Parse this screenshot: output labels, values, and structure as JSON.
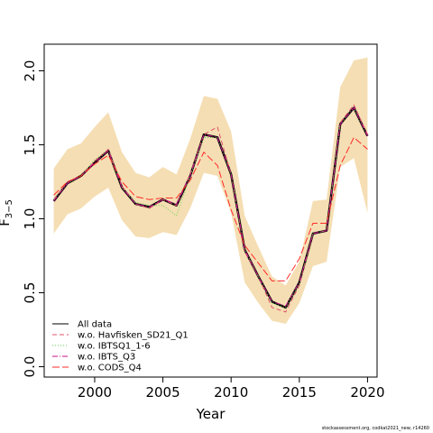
{
  "footer": "stockassessment.org, codkat2021_new, r14260",
  "chart_data": {
    "type": "line",
    "xlabel": "Year",
    "ylabel": "F",
    "ylabel_sub": "3−5",
    "xlim": [
      1996.3,
      2020.7
    ],
    "ylim": [
      -0.07,
      2.18
    ],
    "x_ticks": [
      "2000",
      "2005",
      "2010",
      "2015",
      "2020"
    ],
    "y_ticks": [
      "0.0",
      "0.5",
      "1.0",
      "1.5",
      "2.0"
    ],
    "x": [
      1997,
      1998,
      1999,
      2000,
      2001,
      2002,
      2003,
      2004,
      2005,
      2006,
      2007,
      2008,
      2009,
      2010,
      2011,
      2012,
      2013,
      2014,
      2015,
      2016,
      2017,
      2018,
      2019,
      2020
    ],
    "confidence_band": {
      "color": "#f5deb3",
      "upper": [
        1.34,
        1.47,
        1.51,
        1.62,
        1.72,
        1.45,
        1.31,
        1.28,
        1.35,
        1.3,
        1.54,
        1.83,
        1.81,
        1.59,
        1.02,
        0.81,
        0.61,
        0.55,
        0.71,
        1.12,
        1.13,
        1.89,
        2.07,
        2.09
      ],
      "lower": [
        0.9,
        1.03,
        1.07,
        1.15,
        1.21,
        0.99,
        0.88,
        0.87,
        0.91,
        0.89,
        1.07,
        1.31,
        1.29,
        1.04,
        0.57,
        0.43,
        0.31,
        0.29,
        0.43,
        0.68,
        0.71,
        1.35,
        1.41,
        1.04
      ]
    },
    "series": [
      {
        "name": "All data",
        "color": "#000000",
        "dash": "",
        "width": 2.4,
        "values": [
          1.12,
          1.24,
          1.29,
          1.38,
          1.46,
          1.21,
          1.1,
          1.08,
          1.13,
          1.09,
          1.29,
          1.57,
          1.55,
          1.3,
          0.79,
          0.61,
          0.44,
          0.4,
          0.57,
          0.9,
          0.92,
          1.64,
          1.75,
          1.56
        ]
      },
      {
        "name": "w.o. Havfisken_SD21_Q1",
        "color": "#df536b",
        "dash": "5,3",
        "width": 1,
        "values": [
          1.13,
          1.25,
          1.29,
          1.39,
          1.47,
          1.22,
          1.1,
          1.07,
          1.13,
          1.09,
          1.3,
          1.57,
          1.62,
          1.3,
          0.78,
          0.61,
          0.4,
          0.37,
          0.55,
          0.9,
          0.92,
          1.65,
          1.77,
          1.57
        ]
      },
      {
        "name": "w.o. IBTSQ1_1-6",
        "color": "#61d04f",
        "dash": "1,2",
        "width": 1,
        "values": [
          1.13,
          1.24,
          1.29,
          1.4,
          1.46,
          1.21,
          1.11,
          1.09,
          1.09,
          1.02,
          1.29,
          1.55,
          1.55,
          1.3,
          0.79,
          0.61,
          0.43,
          0.4,
          0.56,
          0.9,
          0.92,
          1.64,
          1.75,
          1.56
        ]
      },
      {
        "name": "w.o. IBTS_Q3",
        "color": "#c8108c",
        "dash": "6,2,1,2",
        "width": 1,
        "values": [
          1.12,
          1.24,
          1.29,
          1.38,
          1.46,
          1.21,
          1.1,
          1.08,
          1.13,
          1.1,
          1.29,
          1.57,
          1.55,
          1.3,
          0.79,
          0.61,
          0.44,
          0.41,
          0.57,
          0.9,
          0.92,
          1.64,
          1.75,
          1.56
        ]
      },
      {
        "name": "w.o. CODS_Q4",
        "color": "#ff2a2a",
        "dash": "8,3",
        "width": 1,
        "values": [
          1.16,
          1.25,
          1.29,
          1.37,
          1.43,
          1.25,
          1.15,
          1.13,
          1.14,
          1.14,
          1.26,
          1.45,
          1.36,
          1.06,
          0.82,
          0.7,
          0.58,
          0.58,
          0.73,
          0.97,
          0.97,
          1.36,
          1.55,
          1.47
        ]
      }
    ],
    "legend_position": "bottom-left"
  }
}
